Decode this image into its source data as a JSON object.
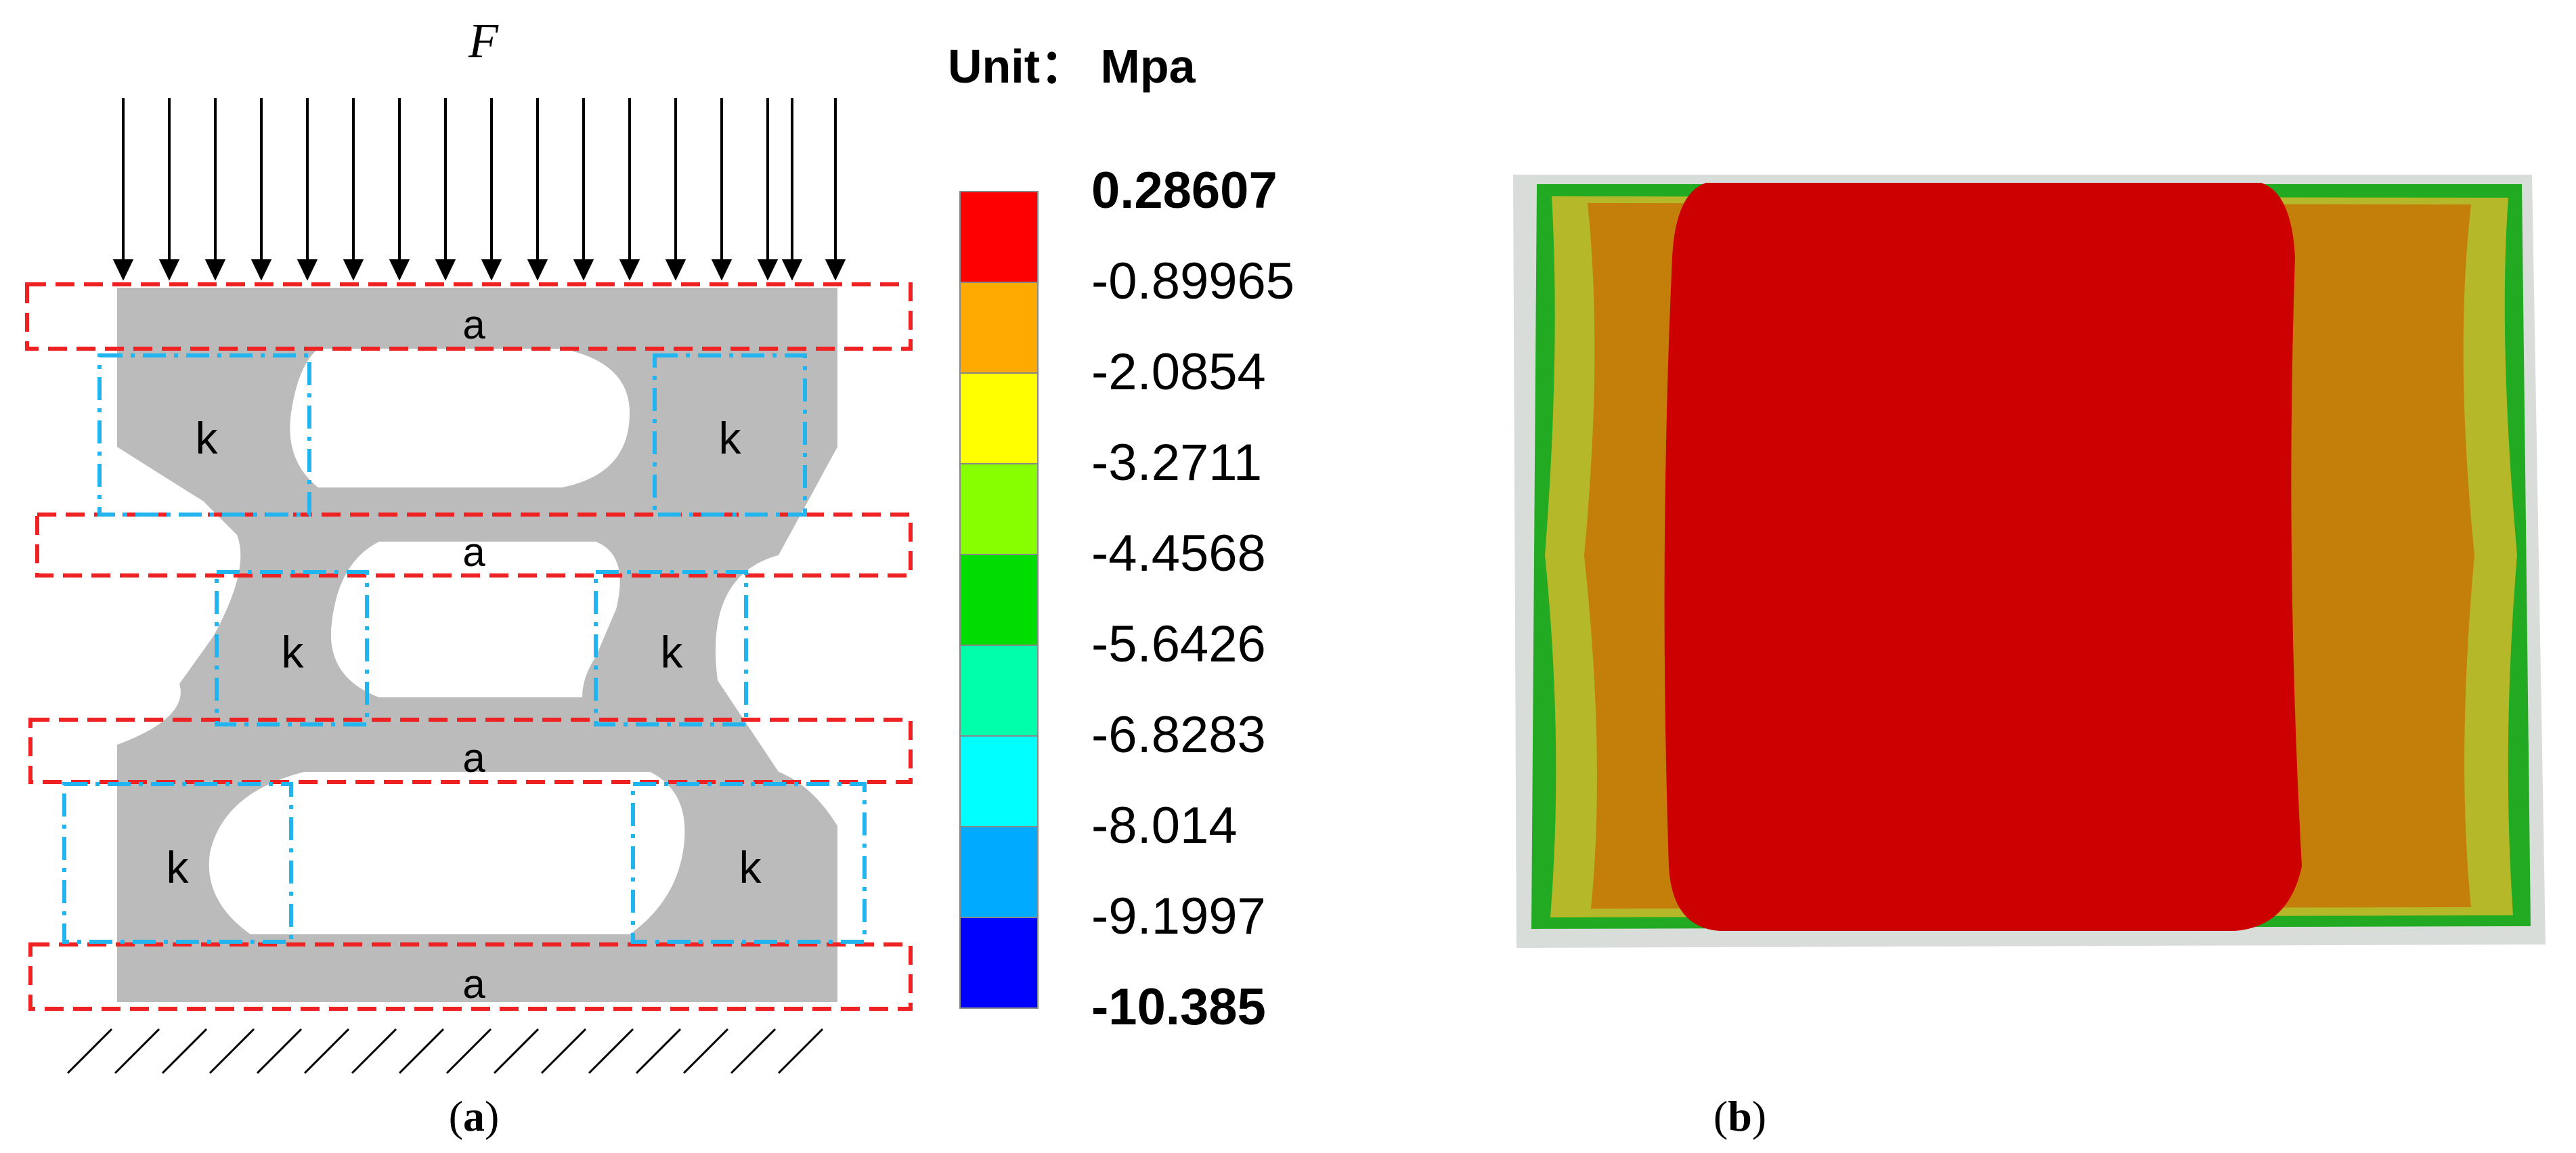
{
  "panel_a": {
    "force_label": "F",
    "beam_labels": [
      "a",
      "a",
      "a",
      "a"
    ],
    "joint_labels": [
      "k",
      "k",
      "k",
      "k",
      "k",
      "k"
    ],
    "caption_open": "(",
    "caption_letter": "a",
    "caption_close": ")"
  },
  "legend": {
    "unit_label": "Unit： Mpa",
    "colors": [
      "#ff0000",
      "#ffaa00",
      "#ffff00",
      "#88ff00",
      "#00dd00",
      "#00ffaa",
      "#00ffff",
      "#00aaff",
      "#0000ff"
    ],
    "ticks": [
      "0.28607",
      "-0.89965",
      "-2.0854",
      "-3.2711",
      "-4.4568",
      "-5.6426",
      "-6.8283",
      "-8.014",
      "-9.1997",
      "-10.385"
    ]
  },
  "panel_b": {
    "caption_open": "(",
    "caption_letter": "b",
    "caption_close": ")",
    "contour_colors": {
      "frame": "#d9ddd9",
      "rim": "#22aa22",
      "outer_band": "#b5b828",
      "middle_band": "#c47e0a",
      "core": "#cc0000"
    }
  },
  "colors": {
    "structure": "#bbbbbb",
    "beam_box": "#ee2222",
    "joint_box": "#22b4ee"
  }
}
